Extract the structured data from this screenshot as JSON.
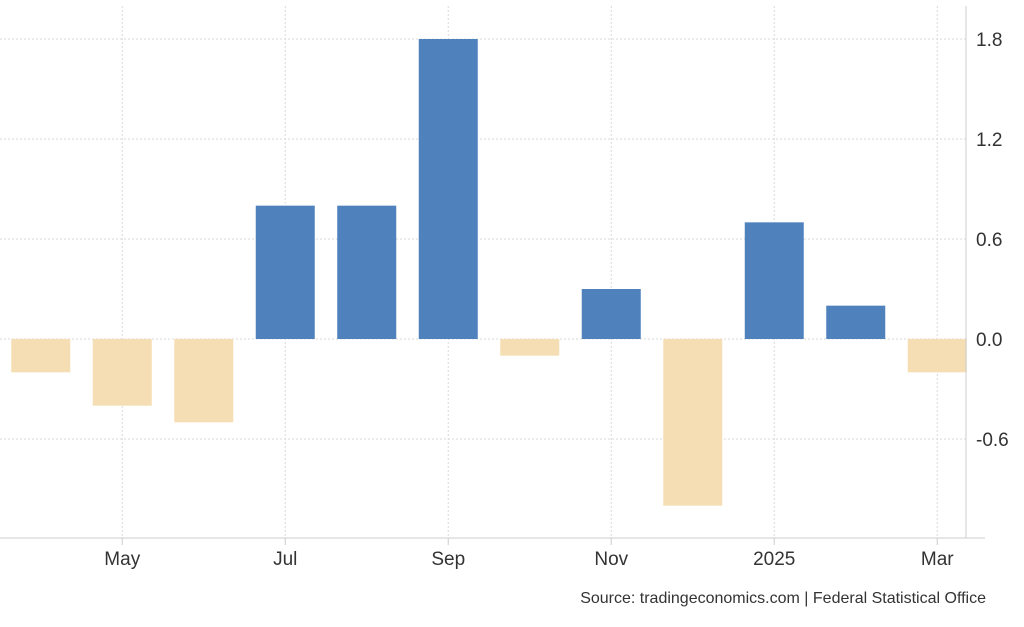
{
  "chart_data": {
    "type": "bar",
    "categories": [
      "Apr 2024",
      "May 2024",
      "Jun 2024",
      "Jul 2024",
      "Aug 2024",
      "Sep 2024",
      "Oct 2024",
      "Nov 2024",
      "Dec 2024",
      "Jan 2025",
      "Feb 2025",
      "Mar 2025"
    ],
    "values": [
      -0.2,
      -0.4,
      -0.5,
      0.8,
      0.8,
      1.8,
      -0.1,
      0.3,
      -1.0,
      0.7,
      0.2,
      -0.2
    ],
    "x_tick_labels": [
      "May",
      "Jul",
      "Sep",
      "Nov",
      "2025",
      "Mar"
    ],
    "x_tick_categories": [
      "May 2024",
      "Jul 2024",
      "Sep 2024",
      "Nov 2024",
      "Jan 2025",
      "Mar 2025"
    ],
    "y_ticks": [
      -0.6,
      0.0,
      0.6,
      1.2,
      1.8
    ],
    "y_tick_labels": [
      "-0.6",
      "0.0",
      "0.6",
      "1.2",
      "1.8"
    ],
    "ylim": [
      -1.2,
      2.0
    ],
    "y_axis_position": "right",
    "grid": true,
    "title": "",
    "xlabel": "",
    "ylabel": "",
    "colors": {
      "positive": "#4f81bd",
      "negative": "#f5deb3",
      "grid": "#d9d9d9",
      "axis": "#cccccc"
    }
  },
  "source_text": "Source: tradingeconomics.com | Federal Statistical Office"
}
